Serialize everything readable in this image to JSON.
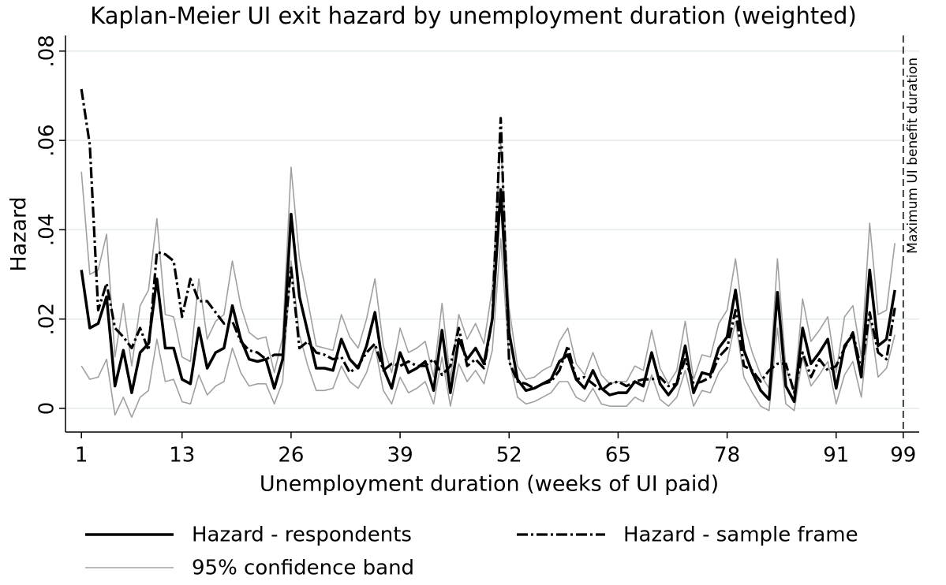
{
  "chart_data": {
    "type": "line",
    "title": "Kaplan-Meier UI exit hazard by unemployment duration (weighted)",
    "x_label": "Unemployment duration (weeks of UI paid)",
    "y_label": "Hazard",
    "x": [
      1,
      2,
      3,
      4,
      5,
      6,
      7,
      8,
      9,
      10,
      11,
      12,
      13,
      14,
      15,
      16,
      17,
      18,
      19,
      20,
      21,
      22,
      23,
      24,
      25,
      26,
      27,
      28,
      29,
      30,
      31,
      32,
      33,
      34,
      35,
      36,
      37,
      38,
      39,
      40,
      41,
      42,
      43,
      44,
      45,
      46,
      47,
      48,
      49,
      50,
      51,
      52,
      53,
      54,
      55,
      56,
      57,
      58,
      59,
      60,
      61,
      62,
      63,
      64,
      65,
      66,
      67,
      68,
      69,
      70,
      71,
      72,
      73,
      74,
      75,
      76,
      77,
      78,
      79,
      80,
      81,
      82,
      83,
      84,
      85,
      86,
      87,
      88,
      89,
      90,
      91,
      92,
      93,
      94,
      95,
      96,
      97,
      98
    ],
    "series": [
      {
        "name": "Hazard - respondents",
        "color": "#000000",
        "style": "solid",
        "values": [
          0.031,
          0.018,
          0.019,
          0.025,
          0.005,
          0.013,
          0.0035,
          0.0125,
          0.0145,
          0.029,
          0.0135,
          0.0135,
          0.0065,
          0.0055,
          0.018,
          0.009,
          0.0125,
          0.0135,
          0.023,
          0.0155,
          0.011,
          0.0105,
          0.011,
          0.0045,
          0.011,
          0.0435,
          0.025,
          0.017,
          0.009,
          0.009,
          0.0085,
          0.0155,
          0.011,
          0.009,
          0.014,
          0.0215,
          0.009,
          0.0045,
          0.0125,
          0.008,
          0.009,
          0.0105,
          0.004,
          0.0175,
          0.0035,
          0.0155,
          0.011,
          0.0135,
          0.01,
          0.02,
          0.049,
          0.017,
          0.0065,
          0.004,
          0.0045,
          0.0055,
          0.0065,
          0.0105,
          0.012,
          0.0065,
          0.0045,
          0.0085,
          0.0045,
          0.003,
          0.0035,
          0.0035,
          0.006,
          0.005,
          0.0125,
          0.0055,
          0.003,
          0.0055,
          0.014,
          0.0035,
          0.008,
          0.0075,
          0.0135,
          0.016,
          0.0265,
          0.013,
          0.008,
          0.004,
          0.002,
          0.026,
          0.005,
          0.0015,
          0.018,
          0.01,
          0.0125,
          0.0155,
          0.0045,
          0.014,
          0.0165,
          0.007,
          0.031,
          0.014,
          0.0155,
          0.0265
        ]
      },
      {
        "name": "Hazard - sample frame",
        "color": "#000000",
        "style": "dashdot",
        "values": [
          0.0715,
          0.059,
          0.022,
          0.028,
          0.018,
          0.016,
          0.0135,
          0.018,
          0.013,
          0.035,
          0.0345,
          0.033,
          0.0205,
          0.029,
          0.024,
          0.024,
          0.0215,
          0.019,
          0.0195,
          0.015,
          0.013,
          0.0125,
          0.011,
          0.012,
          0.012,
          0.0315,
          0.0135,
          0.015,
          0.0125,
          0.012,
          0.011,
          0.0115,
          0.008,
          0.0095,
          0.0125,
          0.0145,
          0.0085,
          0.01,
          0.0095,
          0.0105,
          0.0095,
          0.0095,
          0.011,
          0.0075,
          0.0095,
          0.018,
          0.0095,
          0.011,
          0.009,
          0.02,
          0.065,
          0.0105,
          0.006,
          0.0055,
          0.0045,
          0.0055,
          0.006,
          0.0085,
          0.014,
          0.0065,
          0.007,
          0.0055,
          0.004,
          0.0055,
          0.006,
          0.005,
          0.006,
          0.0065,
          0.0065,
          0.007,
          0.005,
          0.0055,
          0.011,
          0.0055,
          0.006,
          0.007,
          0.0115,
          0.0135,
          0.022,
          0.0095,
          0.0085,
          0.006,
          0.0085,
          0.01,
          0.01,
          0.0035,
          0.0125,
          0.007,
          0.011,
          0.0085,
          0.0095,
          0.0135,
          0.017,
          0.0085,
          0.0215,
          0.0125,
          0.011,
          0.0225
        ]
      },
      {
        "name": "95% confidence band",
        "color": "#a0a0a0",
        "style": "band",
        "upper": [
          0.053,
          0.03,
          0.031,
          0.039,
          0.0115,
          0.0235,
          0.0095,
          0.023,
          0.0265,
          0.0425,
          0.021,
          0.0205,
          0.0115,
          0.0105,
          0.029,
          0.0155,
          0.0195,
          0.021,
          0.033,
          0.023,
          0.017,
          0.0155,
          0.016,
          0.008,
          0.016,
          0.054,
          0.0335,
          0.024,
          0.014,
          0.0135,
          0.013,
          0.021,
          0.016,
          0.0135,
          0.02,
          0.029,
          0.014,
          0.008,
          0.018,
          0.0125,
          0.0135,
          0.015,
          0.007,
          0.0235,
          0.0065,
          0.021,
          0.0155,
          0.019,
          0.0145,
          0.027,
          0.06,
          0.0225,
          0.0095,
          0.0065,
          0.007,
          0.0085,
          0.0095,
          0.015,
          0.018,
          0.01,
          0.0075,
          0.0125,
          0.0075,
          0.0055,
          0.006,
          0.006,
          0.0095,
          0.0085,
          0.0175,
          0.009,
          0.0055,
          0.0085,
          0.0195,
          0.0065,
          0.012,
          0.0115,
          0.019,
          0.022,
          0.0335,
          0.019,
          0.0125,
          0.0075,
          0.0045,
          0.0335,
          0.009,
          0.0035,
          0.0245,
          0.015,
          0.0175,
          0.0205,
          0.008,
          0.0205,
          0.023,
          0.0115,
          0.0415,
          0.021,
          0.022,
          0.037
        ],
        "lower": [
          0.0095,
          0.0065,
          0.007,
          0.011,
          -0.0015,
          0.0025,
          -0.002,
          0.0025,
          0.004,
          0.0155,
          0.006,
          0.0065,
          0.0015,
          0.001,
          0.0075,
          0.003,
          0.005,
          0.006,
          0.0135,
          0.008,
          0.005,
          0.0055,
          0.0055,
          0.001,
          0.006,
          0.033,
          0.0165,
          0.0095,
          0.004,
          0.004,
          0.0045,
          0.0095,
          0.006,
          0.0045,
          0.008,
          0.014,
          0.004,
          0.001,
          0.007,
          0.0035,
          0.0045,
          0.006,
          0.001,
          0.0115,
          0.0005,
          0.01,
          0.006,
          0.0085,
          0.0055,
          0.013,
          0.038,
          0.011,
          0.0025,
          0.001,
          0.0015,
          0.0025,
          0.0035,
          0.006,
          0.006,
          0.0025,
          0.0015,
          0.0045,
          0.001,
          0.0005,
          0.0005,
          0.0005,
          0.0025,
          0.0015,
          0.0075,
          0.002,
          0.0005,
          0.0025,
          0.0085,
          0.0005,
          0.004,
          0.0035,
          0.008,
          0.0105,
          0.0195,
          0.007,
          0.0035,
          0.0005,
          -0.0005,
          0.018,
          0.001,
          -0.0005,
          0.0115,
          0.005,
          0.0075,
          0.0105,
          0.001,
          0.0075,
          0.0105,
          0.0025,
          0.0205,
          0.007,
          0.009,
          0.0165
        ]
      }
    ],
    "xlim": [
      -0.9,
      100.9
    ],
    "xticks": [
      1,
      13,
      26,
      39,
      52,
      65,
      78,
      91,
      99
    ],
    "ylim": [
      -0.0053,
      0.0835
    ],
    "yticks": [
      0,
      {
        "value": 0.02,
        "label": ".02"
      },
      {
        "value": 0.04,
        "label": ".04"
      },
      {
        "value": 0.06,
        "label": ".06"
      },
      {
        "value": 0.08,
        "label": ".08"
      }
    ],
    "grid": true,
    "annotations": [
      {
        "text": "Maximum UI benefit duration",
        "x": 99
      }
    ],
    "legend": "bottom"
  }
}
